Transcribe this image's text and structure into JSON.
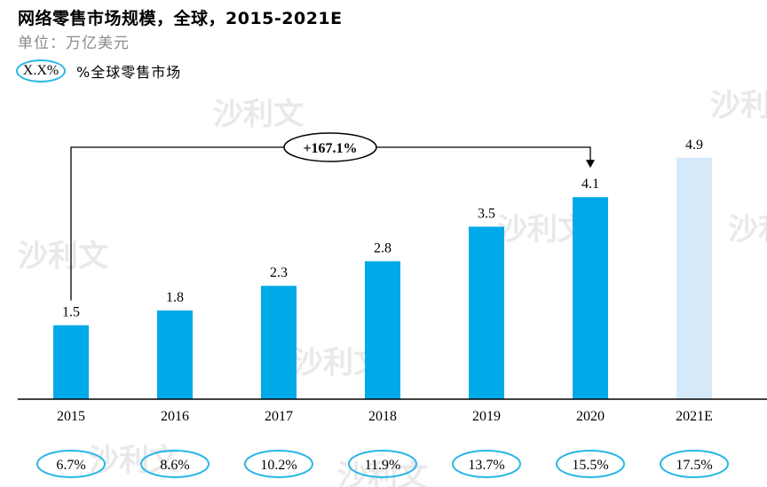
{
  "title": "网络零售市场规模，全球，2015-2021E",
  "unit": "单位：万亿美元",
  "legend": {
    "marker_text": "X.X%",
    "label": "%全球零售市场"
  },
  "growth_label": "+167.1%",
  "watermark": "沙利文",
  "colors": {
    "bar": "#00a9e8",
    "bar_forecast": "#d5e9f9",
    "ellipse": "#29b7e6"
  },
  "chart_data": {
    "type": "bar",
    "categories": [
      "2015",
      "2016",
      "2017",
      "2018",
      "2019",
      "2020",
      "2021E"
    ],
    "values": [
      1.5,
      1.8,
      2.3,
      2.8,
      3.5,
      4.1,
      4.9
    ],
    "value_labels": [
      "1.5",
      "1.8",
      "2.3",
      "2.8",
      "3.5",
      "4.1",
      "4.9"
    ],
    "share_labels": [
      "6.7%",
      "8.6%",
      "10.2%",
      "11.9%",
      "13.7%",
      "15.5%",
      "17.5%"
    ],
    "forecast_index": 6,
    "title": "网络零售市场规模，全球，2015-2021E",
    "ylabel": "单位：万亿美元",
    "ylim": [
      0,
      5.4
    ],
    "grid": false
  }
}
